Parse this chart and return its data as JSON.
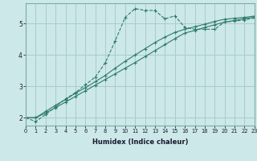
{
  "xlabel": "Humidex (Indice chaleur)",
  "ylabel": "",
  "background_color": "#cce8e8",
  "grid_color": "#aacccc",
  "line_color": "#2e7a6e",
  "xlim": [
    0,
    23
  ],
  "ylim": [
    1.75,
    5.65
  ],
  "yticks": [
    2,
    3,
    4,
    5
  ],
  "xticks": [
    0,
    1,
    2,
    3,
    4,
    5,
    6,
    7,
    8,
    9,
    10,
    11,
    12,
    13,
    14,
    15,
    16,
    17,
    18,
    19,
    20,
    21,
    22,
    23
  ],
  "line1_x": [
    0,
    1,
    2,
    3,
    4,
    5,
    6,
    7,
    8,
    9,
    10,
    11,
    12,
    13,
    14,
    15,
    16,
    17,
    18,
    19,
    20,
    21,
    22,
    23
  ],
  "line1_y": [
    2.0,
    1.88,
    2.1,
    2.35,
    2.6,
    2.8,
    3.05,
    3.3,
    3.75,
    4.45,
    5.2,
    5.48,
    5.42,
    5.42,
    5.15,
    5.25,
    4.88,
    4.82,
    4.82,
    4.82,
    5.05,
    5.08,
    5.12,
    5.18
  ],
  "line2_x": [
    0,
    1,
    2,
    3,
    4,
    5,
    6,
    7,
    8,
    9,
    10,
    11,
    12,
    13,
    14,
    15,
    16,
    17,
    18,
    19,
    20,
    21,
    22,
    23
  ],
  "line2_y": [
    2.0,
    2.0,
    2.15,
    2.32,
    2.5,
    2.68,
    2.86,
    3.04,
    3.22,
    3.4,
    3.58,
    3.76,
    3.95,
    4.14,
    4.33,
    4.52,
    4.7,
    4.78,
    4.88,
    4.96,
    5.05,
    5.1,
    5.16,
    5.2
  ],
  "line3_x": [
    0,
    1,
    2,
    3,
    4,
    5,
    6,
    7,
    8,
    9,
    10,
    11,
    12,
    13,
    14,
    15,
    16,
    17,
    18,
    19,
    20,
    21,
    22,
    23
  ],
  "line3_y": [
    2.0,
    2.0,
    2.2,
    2.4,
    2.58,
    2.78,
    2.96,
    3.15,
    3.35,
    3.58,
    3.8,
    4.0,
    4.2,
    4.4,
    4.57,
    4.72,
    4.82,
    4.9,
    4.98,
    5.07,
    5.14,
    5.17,
    5.2,
    5.24
  ]
}
